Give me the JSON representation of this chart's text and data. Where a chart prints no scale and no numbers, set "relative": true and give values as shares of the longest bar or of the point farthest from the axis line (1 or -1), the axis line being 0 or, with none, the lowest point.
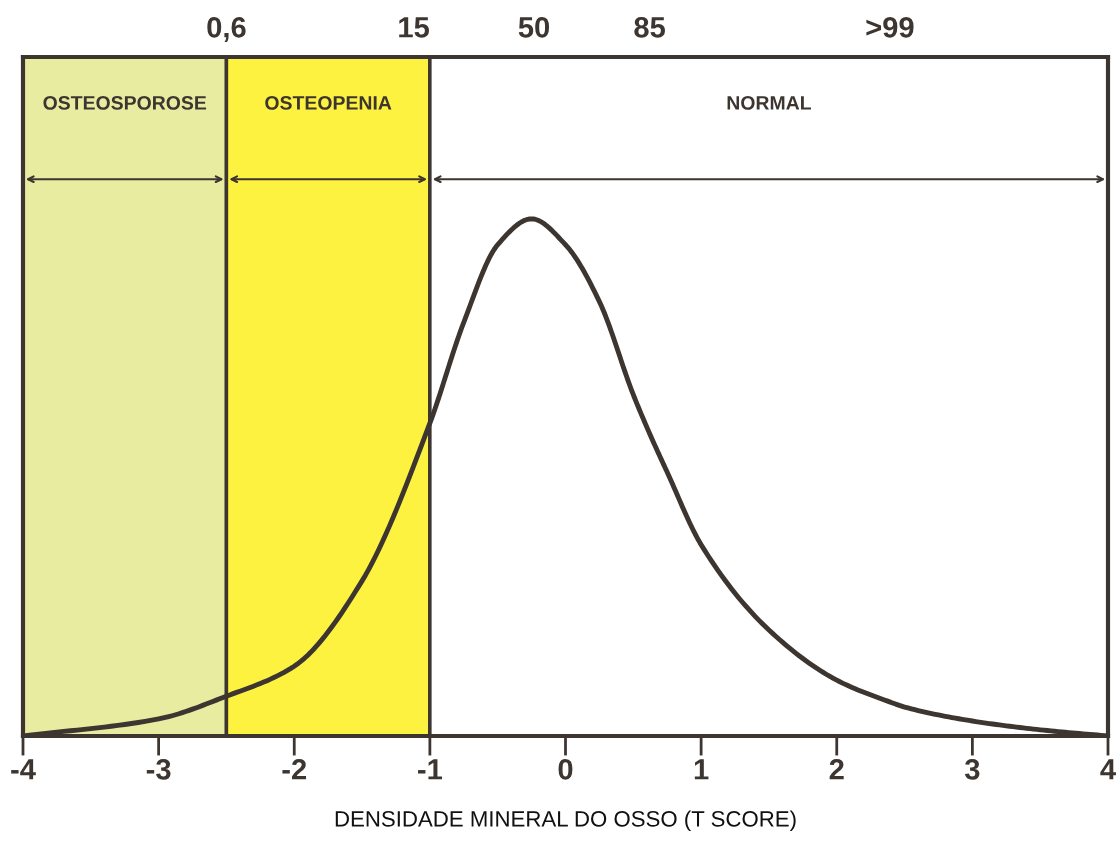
{
  "chart_data": {
    "type": "line",
    "xlabel": "DENSIDADE MINERAL DO OSSO (T SCORE)",
    "relative": true,
    "x": [
      -4,
      -3,
      -2.5,
      -2,
      -1.5,
      -1,
      -0.75,
      -0.5,
      -0.25,
      0,
      0.25,
      0.5,
      0.62,
      0.75,
      1,
      1.5,
      2,
      2.39,
      2.5,
      3,
      3.5,
      4
    ],
    "series": [
      {
        "color": "#3d3530",
        "values": [
          0,
          0.033,
          0.077,
          0.135,
          0.3,
          0.605,
          0.8,
          0.95,
          1,
          0.95,
          0.84,
          0.66,
          0.585,
          0.51,
          0.37,
          0.205,
          0.108,
          0.066,
          0.056,
          0.029,
          0.012,
          0
        ]
      }
    ],
    "xlim": [
      -4,
      4
    ],
    "xticks": [
      -4,
      -3,
      -2,
      -1,
      0,
      1,
      2,
      3,
      4
    ],
    "annotations": [
      "0,6",
      "15",
      "50",
      "85",
      ">99"
    ],
    "bands": [
      {
        "axis": "x",
        "from": -4,
        "to": -2.5,
        "label": "OSTEOSPOROSE",
        "color": "#e8eca0"
      },
      {
        "axis": "x",
        "from": -2.5,
        "to": -1,
        "label": "OSTEOPENIA",
        "color": "#fdf240"
      },
      {
        "axis": "x",
        "from": -1,
        "to": 4,
        "label": "NORMAL",
        "color": "#ffffff"
      }
    ]
  }
}
